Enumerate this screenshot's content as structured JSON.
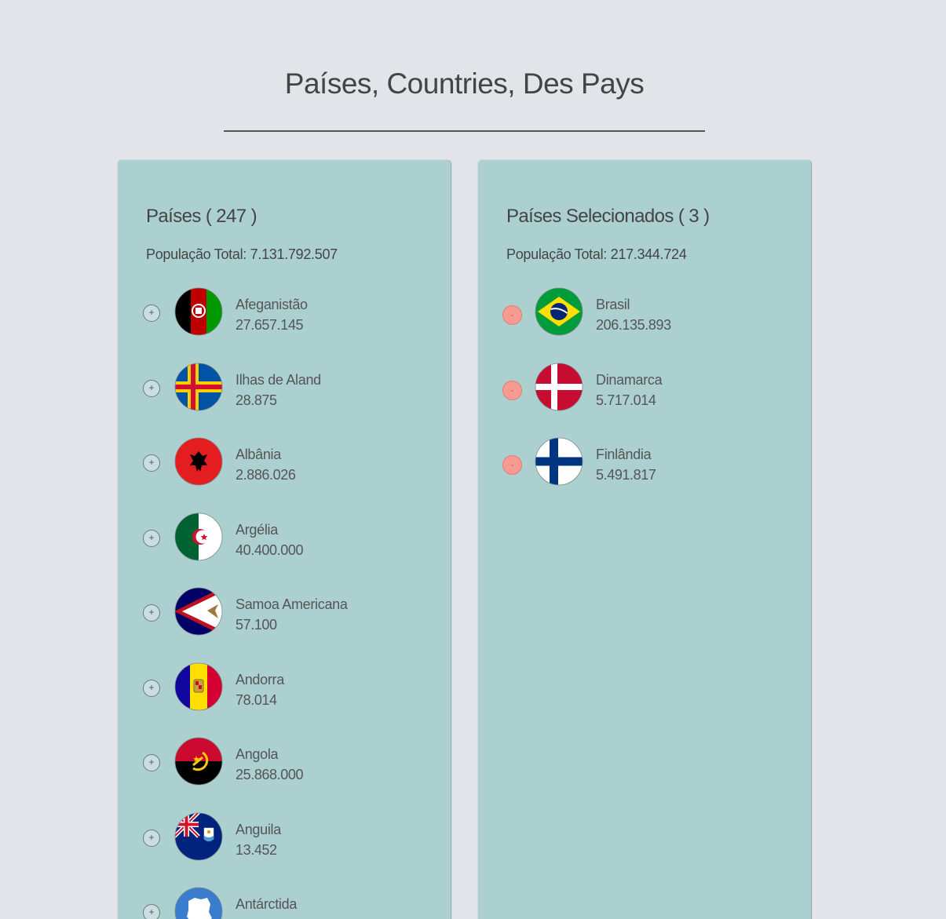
{
  "page": {
    "title": "Países, Countries, Des Pays"
  },
  "all_countries": {
    "heading": "Países ( 247 )",
    "total_population": "População Total: 7.131.792.507",
    "add_symbol": "+",
    "items": [
      {
        "name": "Afeganistão",
        "population": "27.657.145",
        "flag_icon": "afghanistan-flag-icon"
      },
      {
        "name": "Ilhas de Aland",
        "population": "28.875",
        "flag_icon": "aland-islands-flag-icon"
      },
      {
        "name": "Albânia",
        "population": "2.886.026",
        "flag_icon": "albania-flag-icon"
      },
      {
        "name": "Argélia",
        "population": "40.400.000",
        "flag_icon": "algeria-flag-icon"
      },
      {
        "name": "Samoa Americana",
        "population": "57.100",
        "flag_icon": "american-samoa-flag-icon"
      },
      {
        "name": "Andorra",
        "population": "78.014",
        "flag_icon": "andorra-flag-icon"
      },
      {
        "name": "Angola",
        "population": "25.868.000",
        "flag_icon": "angola-flag-icon"
      },
      {
        "name": "Anguila",
        "population": "13.452",
        "flag_icon": "anguilla-flag-icon"
      },
      {
        "name": "Antárctida",
        "population": "",
        "flag_icon": "antarctica-flag-icon"
      }
    ]
  },
  "selected_countries": {
    "heading": "Países Selecionados ( 3 )",
    "total_population": "População Total: 217.344.724",
    "remove_symbol": "-",
    "items": [
      {
        "name": "Brasil",
        "population": "206.135.893",
        "flag_icon": "brazil-flag-icon"
      },
      {
        "name": "Dinamarca",
        "population": "5.717.014",
        "flag_icon": "denmark-flag-icon"
      },
      {
        "name": "Finlândia",
        "population": "5.491.817",
        "flag_icon": "finland-flag-icon"
      }
    ]
  },
  "colors": {
    "background": "#e2e4e9",
    "panel": "#accfd0",
    "remove_button": "#f59b91"
  }
}
